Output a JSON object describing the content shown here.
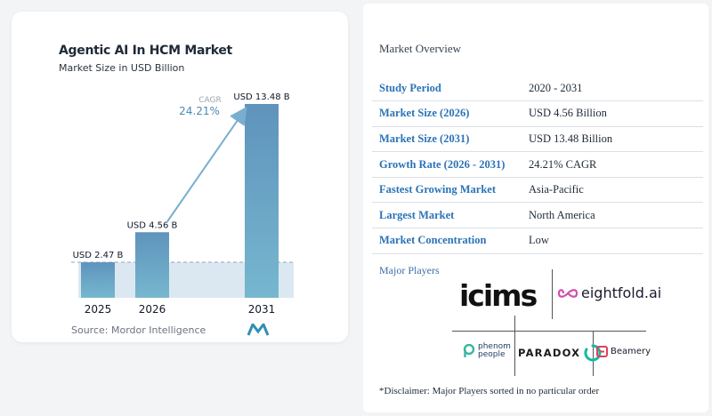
{
  "chart_data": {
    "type": "bar",
    "title": "Agentic AI In HCM Market",
    "subtitle": "Market Size in USD Billion",
    "categories": [
      "2025",
      "2026",
      "2031"
    ],
    "values": [
      2.47,
      4.56,
      13.48
    ],
    "value_labels": [
      "USD 2.47 B",
      "USD 4.56 B",
      "USD 13.48 B"
    ],
    "ylim": [
      0,
      13.48
    ],
    "cagr_label": "CAGR",
    "cagr_value": "24.21%",
    "grid": false,
    "bar_color_top": "#5f93bc",
    "bar_color_bottom": "#76b7cf",
    "baseline_fill": "#dce8f1"
  },
  "source": "Source: Mordor Intelligence",
  "overview": {
    "title": "Market Overview",
    "rows": [
      {
        "label": "Study Period",
        "value": "2020 - 2031"
      },
      {
        "label": "Market Size (2026)",
        "value": "USD 4.56 Billion"
      },
      {
        "label": "Market Size (2031)",
        "value": "USD 13.48 Billion"
      },
      {
        "label": "Growth Rate (2026 - 2031)",
        "value": "24.21% CAGR"
      },
      {
        "label": "Fastest Growing Market",
        "value": "Asia-Pacific"
      },
      {
        "label": "Largest Market",
        "value": "North America"
      },
      {
        "label": "Market Concentration",
        "value": "Low"
      }
    ]
  },
  "players": {
    "title": "Major Players",
    "icims": "icims",
    "eightfold": "eightfold.ai",
    "phenom_line1": "phenom",
    "phenom_line2": "people",
    "paradox": "PARADOX",
    "beamery": "Beamery"
  },
  "disclaimer": "*Disclaimer: Major Players sorted in no particular order",
  "colors": {
    "label_blue": "#2b73b8",
    "arrow": "#7aaed0"
  }
}
